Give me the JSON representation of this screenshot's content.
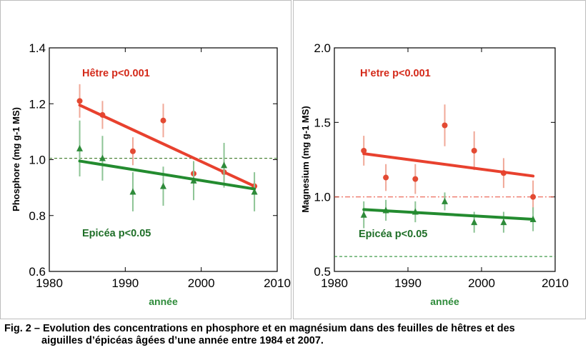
{
  "caption": {
    "line1": "Fig. 2 – Evolution des concentrations en phosphore et en magnésium dans des feuilles de hêtres et des",
    "line2": "aiguilles d’épicéas âgées d’une année entre 1984 et 2007."
  },
  "colors": {
    "hetre": "#e34a33",
    "hetre_line": "#e8412e",
    "epicea": "#2e8b3a",
    "epicea_line": "#238b2f",
    "axis": "#000000"
  },
  "chart_data": [
    {
      "type": "scatter",
      "ylabel": "Phosphore (mg g-1 MS)",
      "xlabel": "année",
      "xlim": [
        1980,
        2010
      ],
      "ylim": [
        0.6,
        1.4
      ],
      "xticks": [
        "1980",
        "1990",
        "2000",
        "2010"
      ],
      "yticks": [
        "0.6",
        "0.8",
        "1.0",
        "1.2",
        "1.4"
      ],
      "ref_lines": [
        {
          "series": "Hêtre",
          "y": 1.005,
          "style": "dash"
        },
        {
          "series": "Epicéa",
          "y": 1.005,
          "style": "dash"
        }
      ],
      "series": [
        {
          "name": "Hêtre",
          "label": "Hêtre p<0.001",
          "marker": "circle",
          "x": [
            1984,
            1987,
            1991,
            1995,
            1999,
            2003,
            2007
          ],
          "y": [
            1.21,
            1.16,
            1.03,
            1.14,
            0.95,
            0.955,
            0.905
          ],
          "err": [
            0.06,
            0.05,
            0.05,
            0.06,
            0.04,
            0.04,
            0.02
          ],
          "trend": [
            [
              1984,
              1.195
            ],
            [
              2007,
              0.905
            ]
          ]
        },
        {
          "name": "Epicéa",
          "label": "Epicéa p<0.05",
          "marker": "triangle",
          "x": [
            1984,
            1987,
            1991,
            1995,
            1999,
            2003,
            2007
          ],
          "y": [
            1.04,
            1.005,
            0.885,
            0.905,
            0.925,
            0.98,
            0.885
          ],
          "err": [
            0.1,
            0.08,
            0.07,
            0.07,
            0.07,
            0.08,
            0.07
          ],
          "trend": [
            [
              1984,
              0.995
            ],
            [
              2007,
              0.895
            ]
          ]
        }
      ]
    },
    {
      "type": "scatter",
      "ylabel": "Magnesium (mg g-1 MS)",
      "xlabel": "année",
      "xlim": [
        1980,
        2010
      ],
      "ylim": [
        0.5,
        2.0
      ],
      "xticks": [
        "1980",
        "1990",
        "2000",
        "2010"
      ],
      "yticks": [
        "0.5",
        "1.0",
        "1.5",
        "2.0"
      ],
      "ref_lines": [
        {
          "series": "H’etre",
          "y": 1.0,
          "style": "dashdot"
        },
        {
          "series": "Epicéa",
          "y": 0.6,
          "style": "dash"
        }
      ],
      "series": [
        {
          "name": "H’etre",
          "label": "H’etre p<0.001",
          "marker": "circle",
          "x": [
            1984,
            1987,
            1991,
            1995,
            1999,
            2003,
            2007
          ],
          "y": [
            1.31,
            1.13,
            1.12,
            1.48,
            1.31,
            1.16,
            1.0
          ],
          "err": [
            0.1,
            0.09,
            0.1,
            0.14,
            0.13,
            0.1,
            0.11
          ],
          "trend": [
            [
              1984,
              1.29
            ],
            [
              2007,
              1.14
            ]
          ]
        },
        {
          "name": "Epicéa",
          "label": "Epicéa p<0.05",
          "marker": "triangle",
          "x": [
            1984,
            1987,
            1991,
            1995,
            1999,
            2003,
            2007
          ],
          "y": [
            0.88,
            0.91,
            0.9,
            0.97,
            0.83,
            0.83,
            0.85
          ],
          "err": [
            0.09,
            0.07,
            0.07,
            0.06,
            0.07,
            0.07,
            0.08
          ],
          "trend": [
            [
              1984,
              0.915
            ],
            [
              2007,
              0.85
            ]
          ]
        }
      ]
    }
  ]
}
